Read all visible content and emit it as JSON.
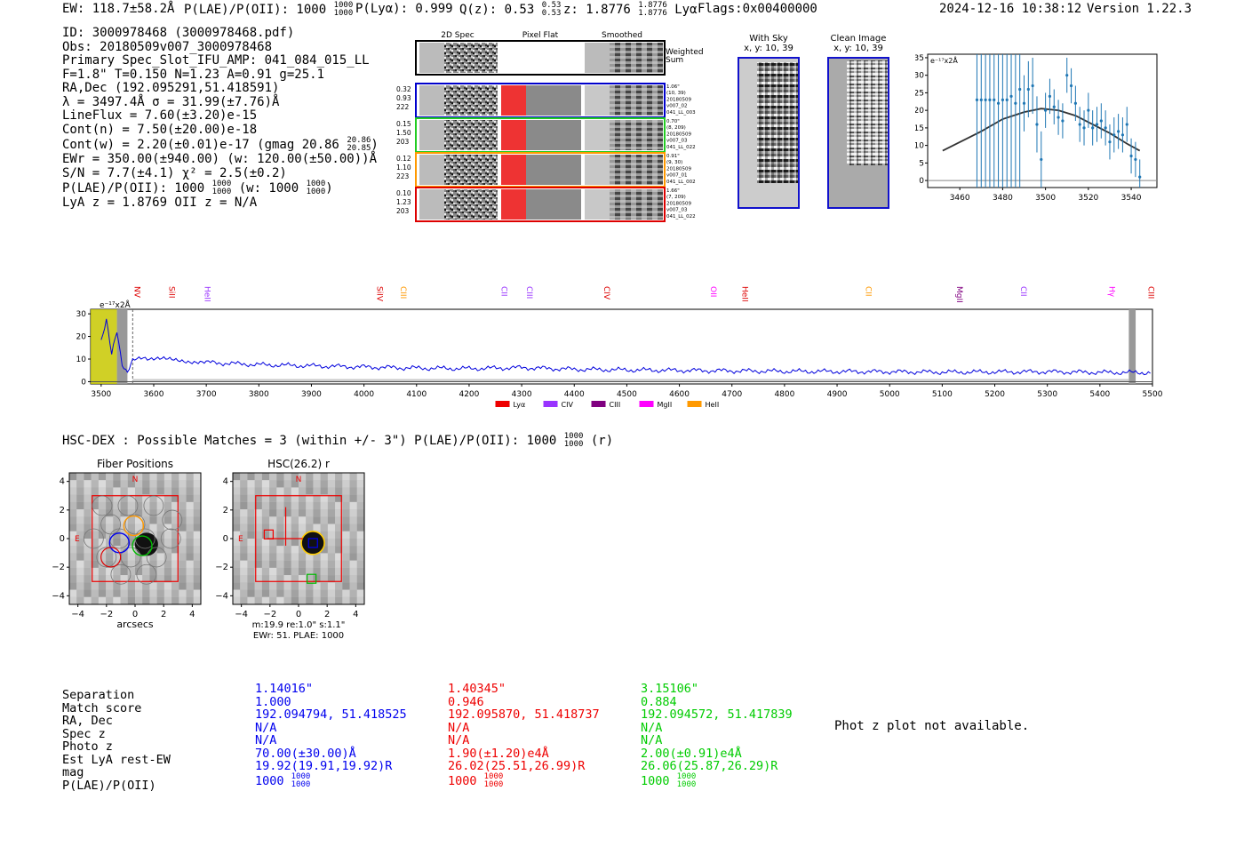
{
  "header": {
    "ew": "EW: 118.7±58.2Å",
    "plae_label": "P(LAE)/P(OII): 1000",
    "plae_hi": "1000",
    "plae_lo": "1000",
    "plya": "P(Lyα): 0.999",
    "qz_label": "Q(z): 0.53",
    "qz_hi": "0.53",
    "qz_lo": "0.53",
    "z_label": "z: 1.8776",
    "z_hi": "1.8776",
    "z_lo": "1.8776",
    "z_line": "Lyα",
    "flags": "Flags:0x00400000",
    "timestamp": "2024-12-16 10:38:12",
    "version": "Version 1.22.3"
  },
  "info": {
    "id": "ID: 3000978468 (3000978468.pdf)",
    "obs": "Obs: 20180509v007_3000978468",
    "slot": "Primary Spec_Slot_IFU_AMP: 041_084_015_LL",
    "fparams": "F=1.8\"  T=0.150  N=1.23  A=0.91  g=25.1",
    "radec": "RA,Dec (192.095291,51.418591)",
    "lambda": "λ = 3497.4Å  σ = 31.99(±7.76)Å",
    "lineflux": "LineFlux = 7.60(±3.20)e-15",
    "contn": "Cont(n) = 7.50(±20.00)e-18",
    "contw": "Cont(w) = 2.20(±0.01)e-17 (gmag 20.86",
    "contw_hi": "20.86",
    "contw_lo": "20.85",
    "ewr": "EWr = 350.00(±940.00) (w: 120.00(±50.00))Å",
    "sn": "S/N = 7.7(±4.1)  χ² = 2.5(±0.2)",
    "plae": "P(LAE)/P(OII): 1000",
    "plae_hi": "1000",
    "plae_lo": "1000",
    "plae_w": "(w: 1000",
    "plae_w_hi": "1000",
    "plae_w_lo": "1000",
    "lyaz": "LyA z = 1.8769  OII z = N/A"
  },
  "cutouts": {
    "col_labels": [
      "2D Spec",
      "Pixel Flat",
      "Smoothed"
    ],
    "weighted_sum": "Weighted\nSum",
    "rows": [
      {
        "left": [
          "0.32",
          "0.93",
          "222"
        ],
        "right": [
          "1.06\"",
          "(10, 39)",
          "20180509",
          "v007_02",
          "041_LL_003"
        ],
        "color": "#0000cc"
      },
      {
        "left": [
          "0.15",
          "1.50",
          "203"
        ],
        "right": [
          "0.70\"",
          "(8, 209)",
          "20180509",
          "v007_03",
          "041_LL_022"
        ],
        "color": "#22cc22"
      },
      {
        "left": [
          "0.12",
          "1.10",
          "223"
        ],
        "right": [
          "0.91\"",
          "(9, 30)",
          "20180509",
          "v007_01",
          "041_LL_002"
        ],
        "color": "#ff9900"
      },
      {
        "left": [
          "0.10",
          "1.23",
          "203"
        ],
        "right": [
          "1.66\"",
          "(7, 209)",
          "20180509",
          "v007_03",
          "041_LL_022"
        ],
        "color": "#dd0000"
      }
    ],
    "with_sky_title": "With Sky",
    "with_sky_xy": "x, y: 10, 39",
    "clean_title": "Clean Image",
    "clean_xy": "x, y: 10, 39"
  },
  "chart_data": [
    {
      "type": "line",
      "title": "",
      "ylabel": "e⁻¹⁷x2Å",
      "x": [
        3468,
        3470,
        3472,
        3474,
        3476,
        3478,
        3480,
        3482,
        3484,
        3486,
        3488,
        3490,
        3492,
        3494,
        3496,
        3498,
        3500,
        3502,
        3504,
        3506,
        3508,
        3510,
        3512,
        3514,
        3516,
        3518,
        3520,
        3522,
        3524,
        3526,
        3528,
        3530,
        3532,
        3534,
        3536,
        3538,
        3540,
        3542,
        3544
      ],
      "y": [
        23,
        23,
        23,
        23,
        23,
        22,
        23,
        23,
        24,
        22,
        26,
        22,
        26,
        27,
        16,
        6,
        20,
        24,
        21,
        18,
        17,
        30,
        27,
        22,
        16,
        15,
        20,
        15,
        16,
        17,
        15,
        11,
        13,
        14,
        13,
        16,
        7,
        6,
        1
      ],
      "model_x": [
        3452,
        3470,
        3480,
        3490,
        3498,
        3506,
        3514,
        3522,
        3530,
        3538,
        3544
      ],
      "model_y": [
        8.5,
        14,
        17.5,
        19.5,
        20.5,
        20,
        18.5,
        16,
        13.5,
        10.5,
        8.5
      ],
      "xlim": [
        3445,
        3552
      ],
      "ylim": [
        -2,
        36
      ],
      "xticks": [
        3460,
        3480,
        3500,
        3520,
        3540
      ],
      "yticks": [
        0,
        5,
        10,
        15,
        20,
        25,
        30,
        35
      ]
    },
    {
      "type": "line",
      "title": "",
      "ylabel": "e⁻¹⁷x2Å",
      "xlim": [
        3480,
        5500
      ],
      "ylim": [
        -1,
        32
      ],
      "xticks": [
        3500,
        3600,
        3700,
        3800,
        3900,
        4000,
        4100,
        4200,
        4300,
        4400,
        4500,
        4600,
        4700,
        4800,
        4900,
        5000,
        5100,
        5200,
        5300,
        5400,
        5500
      ],
      "yticks": [
        0,
        10,
        20,
        30
      ],
      "x": [
        3500,
        3510,
        3520,
        3530,
        3540,
        3550,
        3560,
        3580,
        3600,
        3650,
        3700,
        3800,
        3900,
        4000,
        4100,
        4200,
        4300,
        4400,
        4500,
        4600,
        4700,
        4800,
        4900,
        5000,
        5100,
        5200,
        5300,
        5400,
        5500
      ],
      "y": [
        18,
        28,
        12,
        22,
        8,
        4,
        9,
        11,
        10,
        9.5,
        8.5,
        7.5,
        7,
        6.5,
        6,
        5.8,
        6.2,
        5.5,
        5.2,
        5,
        4.8,
        4.6,
        4.5,
        4.4,
        4.2,
        4.3,
        4.4,
        4.1,
        4
      ],
      "lines": [
        {
          "name": "NV",
          "x": 3564,
          "color": "#dd0000"
        },
        {
          "name": "SiII",
          "x": 3630,
          "color": "#dd0000"
        },
        {
          "name": "HeII",
          "x": 3697,
          "color": "#9933ff"
        },
        {
          "name": "SiIV",
          "x": 4025,
          "color": "#dd0000"
        },
        {
          "name": "CIII",
          "x": 4070,
          "color": "#ff9900"
        },
        {
          "name": "CII",
          "x": 4262,
          "color": "#9933ff"
        },
        {
          "name": "CIII",
          "x": 4310,
          "color": "#9933ff"
        },
        {
          "name": "CIV",
          "x": 4457,
          "color": "#dd0000"
        },
        {
          "name": "OII",
          "x": 4660,
          "color": "#ff00ff"
        },
        {
          "name": "HeII",
          "x": 4720,
          "color": "#dd0000"
        },
        {
          "name": "CII",
          "x": 4955,
          "color": "#ff9900"
        },
        {
          "name": "MgII",
          "x": 5128,
          "color": "#800080"
        },
        {
          "name": "CII",
          "x": 5250,
          "color": "#9933ff"
        },
        {
          "name": "Hγ",
          "x": 5418,
          "color": "#ff00ff"
        },
        {
          "name": "CIII",
          "x": 5492,
          "color": "#dd0000"
        }
      ],
      "legend": [
        {
          "name": "Lyα",
          "color": "#ee0000"
        },
        {
          "name": "CIV",
          "color": "#9933ff"
        },
        {
          "name": "CIII",
          "color": "#800080"
        },
        {
          "name": "MgII",
          "color": "#ff00ff"
        },
        {
          "name": "HeII",
          "color": "#ff9900"
        }
      ]
    }
  ],
  "hsc": {
    "summary": "HSC-DEX : Possible Matches = 3 (within +/- 3\")  P(LAE)/P(OII): 1000",
    "summary_hi": "1000",
    "summary_lo": "1000",
    "summary_band": "(r)",
    "fiber_title": "Fiber Positions",
    "fiber_xlabel": "arcsecs",
    "hsc_title": "HSC(26.2) r",
    "hsc_caption1": "m:19.9  re:1.0\"  s:1.1\"",
    "hsc_caption2": "EWr: 51. PLAE: 1000",
    "ticks": [
      "4",
      "2",
      "0",
      "−2",
      "−4"
    ],
    "xticks": [
      "−4",
      "−2",
      "0",
      "2",
      "4"
    ],
    "north": "N",
    "east": "E"
  },
  "matches": {
    "labels": [
      "Separation",
      "Match score",
      "RA, Dec",
      "Spec z",
      "Photo z",
      "Est LyA rest-EW",
      "mag",
      "P(LAE)/P(OII)"
    ],
    "columns": [
      {
        "color": "#0000ee",
        "values": [
          "1.14016\"",
          "1.000",
          "192.094794, 51.418525",
          "N/A",
          "N/A",
          "70.00(±30.00)Å",
          "19.92(19.91,19.92)R",
          "1000"
        ],
        "plae_hi": "1000",
        "plae_lo": "1000"
      },
      {
        "color": "#ee0000",
        "values": [
          "1.40345\"",
          "0.946",
          "192.095870, 51.418737",
          "N/A",
          "N/A",
          "1.90(±1.20)e4Å",
          "26.02(25.51,26.99)R",
          "1000"
        ],
        "plae_hi": "1000",
        "plae_lo": "1000"
      },
      {
        "color": "#00cc00",
        "values": [
          "3.15106\"",
          "0.884",
          "192.094572, 51.417839",
          "N/A",
          "N/A",
          "2.00(±0.91)e4Å",
          "26.06(25.87,26.29)R",
          "1000"
        ],
        "plae_hi": "1000",
        "plae_lo": "1000"
      }
    ],
    "photz_note": "Phot z plot not available."
  }
}
